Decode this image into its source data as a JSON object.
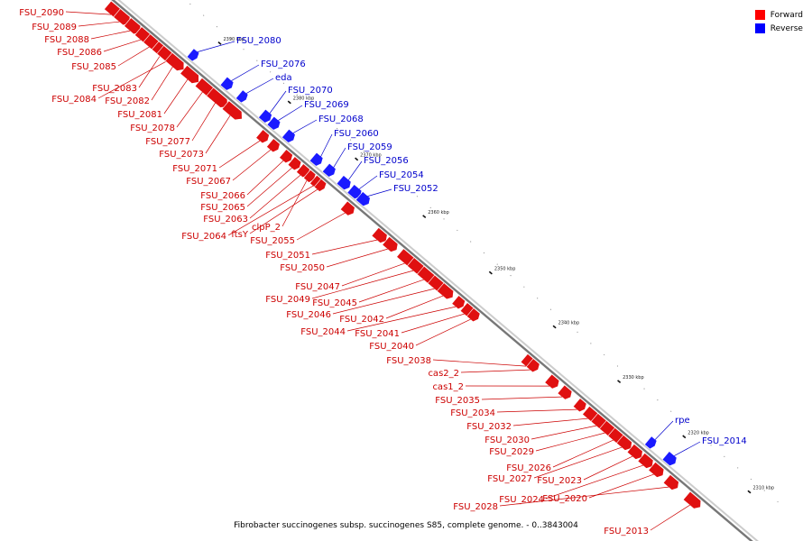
{
  "legend": [
    {
      "label": "Forward",
      "color": "#ff0000"
    },
    {
      "label": "Reverse",
      "color": "#0000ff"
    }
  ],
  "caption": "Fibrobacter succinogenes subsp. succinogenes S85, complete genome. - 0..3843004",
  "colors": {
    "forward": "#e01010",
    "reverse": "#1a1aff",
    "backbone": "#777777",
    "forward_label": "#cc0000",
    "reverse_label": "#0000cc"
  },
  "ticks": [
    "2400 kbp",
    "2390 kbp",
    "2380 kbp",
    "2370 kbp",
    "2360 kbp",
    "2350 kbp",
    "2340 kbp",
    "2330 kbp",
    "2320 kbp",
    "2310 kbp"
  ],
  "forward_genes": [
    {
      "label": "FSU_2090"
    },
    {
      "label": "FSU_2089"
    },
    {
      "label": "FSU_2088"
    },
    {
      "label": "FSU_2086"
    },
    {
      "label": "FSU_2085"
    },
    {
      "label": "FSU_2083"
    },
    {
      "label": "FSU_2084"
    },
    {
      "label": "FSU_2082"
    },
    {
      "label": "FSU_2081"
    },
    {
      "label": "FSU_2078"
    },
    {
      "label": "FSU_2077"
    },
    {
      "label": "FSU_2073"
    },
    {
      "label": "FSU_2071"
    },
    {
      "label": "FSU_2067"
    },
    {
      "label": "FSU_2066"
    },
    {
      "label": "FSU_2065"
    },
    {
      "label": "FSU_2063"
    },
    {
      "label": "clpP_2"
    },
    {
      "label": "FSU_2064"
    },
    {
      "label": "ftsY"
    },
    {
      "label": "FSU_2055"
    },
    {
      "label": "FSU_2051"
    },
    {
      "label": "FSU_2050"
    },
    {
      "label": "FSU_2047"
    },
    {
      "label": "FSU_2049"
    },
    {
      "label": "FSU_2045"
    },
    {
      "label": "FSU_2046"
    },
    {
      "label": "FSU_2042"
    },
    {
      "label": "FSU_2044"
    },
    {
      "label": "FSU_2041"
    },
    {
      "label": "FSU_2040"
    },
    {
      "label": "FSU_2038"
    },
    {
      "label": "cas2_2"
    },
    {
      "label": "cas1_2"
    },
    {
      "label": "FSU_2035"
    },
    {
      "label": "FSU_2034"
    },
    {
      "label": "FSU_2032"
    },
    {
      "label": "FSU_2030"
    },
    {
      "label": "FSU_2029"
    },
    {
      "label": "FSU_2026"
    },
    {
      "label": "FSU_2027"
    },
    {
      "label": "FSU_2023"
    },
    {
      "label": "FSU_2024"
    },
    {
      "label": "FSU_2020"
    },
    {
      "label": "FSU_2028"
    },
    {
      "label": "FSU_2013"
    }
  ],
  "reverse_genes": [
    {
      "label": "FSU_2080"
    },
    {
      "label": "FSU_2076"
    },
    {
      "label": "eda"
    },
    {
      "label": "FSU_2070"
    },
    {
      "label": "FSU_2069"
    },
    {
      "label": "FSU_2068"
    },
    {
      "label": "FSU_2060"
    },
    {
      "label": "FSU_2059"
    },
    {
      "label": "FSU_2056"
    },
    {
      "label": "FSU_2054"
    },
    {
      "label": "FSU_2052"
    },
    {
      "label": "rpe"
    },
    {
      "label": "FSU_2014"
    }
  ]
}
